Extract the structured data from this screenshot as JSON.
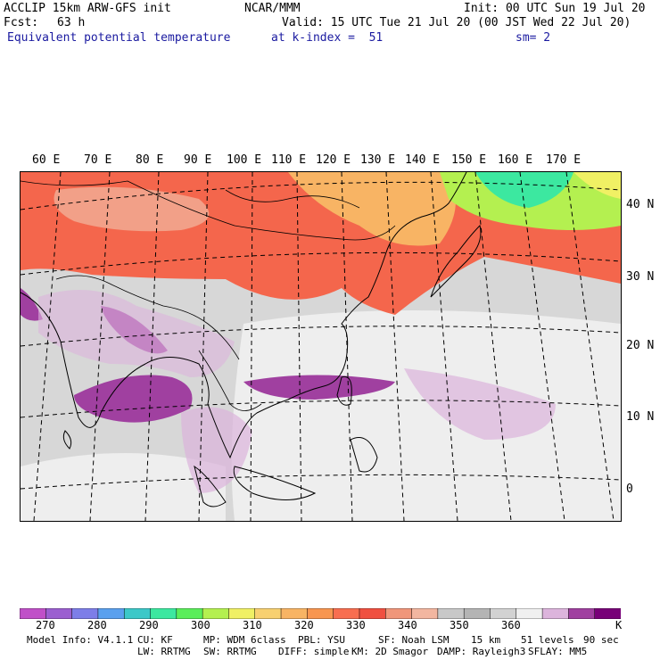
{
  "header": {
    "model_title": "ACCLIP 15km ARW-GFS init",
    "center": "NCAR/MMM",
    "init": "Init: 00 UTC Sun 19 Jul 20",
    "fcst_label": "Fcst:",
    "fcst_value": "63 h",
    "valid": "Valid: 15 UTC Tue 21 Jul 20 (00 JST Wed 22 Jul 20)",
    "field": "Equivalent potential temperature",
    "level": "at k-index =  51",
    "smoothing": "sm= 2"
  },
  "map": {
    "lon_labels": [
      "60 E",
      "70 E",
      "80 E",
      "90 E",
      "100 E",
      "110 E",
      "120 E",
      "130 E",
      "140 E",
      "150 E",
      "160 E",
      "170 E"
    ],
    "lat_labels": [
      "40 N",
      "30 N",
      "20 N",
      "10 N",
      "0"
    ]
  },
  "colorbar": {
    "unit": "K",
    "tick_labels": [
      "270",
      "280",
      "290",
      "300",
      "310",
      "320",
      "330",
      "340",
      "350",
      "360"
    ],
    "colors": [
      "#c050c8",
      "#9b5fd0",
      "#7d7ee8",
      "#5aa0ee",
      "#3cc8c8",
      "#3ce8a0",
      "#5aee5a",
      "#b4f050",
      "#f0f064",
      "#f8d070",
      "#f8b464",
      "#f89650",
      "#f86e50",
      "#f05040",
      "#f0967a",
      "#f2b6a0",
      "#c8c8c8",
      "#b4b4b4",
      "#d2d2d2",
      "#f0f0f0",
      "#dcb4dc",
      "#a040a0",
      "#780078"
    ]
  },
  "model_info": {
    "line1": [
      "Model Info: V4.1.1",
      "CU: KF",
      "MP: WDM 6class",
      "PBL: YSU",
      "SF: Noah LSM",
      "15 km",
      "51 levels",
      "90 sec"
    ],
    "line2": [
      "LW: RRTMG",
      "SW: RRTMG",
      "DIFF: simple",
      "KM: 2D Smagor",
      "DAMP: Rayleigh3",
      "SFLAY: MM5"
    ]
  }
}
